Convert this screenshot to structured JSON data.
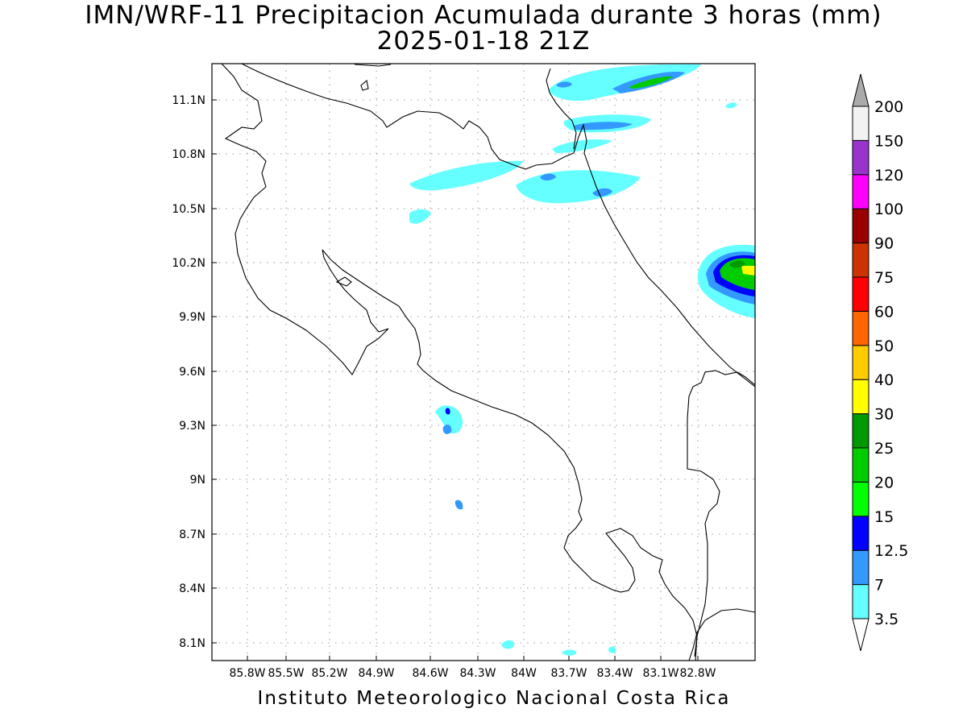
{
  "title": "IMN/WRF-11 Precipitacion Acumulada durante 3 horas (mm)",
  "subtitle": "2025-01-18 21Z",
  "footer": "Instituto Meteorologico Nacional Costa Rica",
  "map": {
    "lon_range": [
      -86.1,
      -82.5
    ],
    "lat_range": [
      8.0,
      11.3
    ],
    "x_ticks": [
      "85.8W",
      "85.5W",
      "85.2W",
      "84.9W",
      "84.6W",
      "84.3W",
      "84W",
      "83.7W",
      "83.4W",
      "83.1W",
      "82.8W"
    ],
    "y_ticks": [
      "11.1N",
      "10.8N",
      "10.5N",
      "10.2N",
      "9.9N",
      "9.6N",
      "9.3N",
      "9N",
      "8.7N",
      "8.4N",
      "8.1N"
    ],
    "gridlines": "dotted"
  },
  "colorbar": {
    "levels": [
      "3.5",
      "7",
      "12.5",
      "15",
      "20",
      "25",
      "30",
      "40",
      "50",
      "60",
      "75",
      "90",
      "100",
      "120",
      "150",
      "200"
    ],
    "colors": [
      "#66ffff",
      "#3399ff",
      "#0000ff",
      "#00ff00",
      "#00cc00",
      "#009900",
      "#ffff00",
      "#ffcc00",
      "#ff6600",
      "#ff0000",
      "#cc3300",
      "#990000",
      "#ff00ff",
      "#9933cc",
      "#f2f2f2",
      "#aaaaaa"
    ]
  }
}
